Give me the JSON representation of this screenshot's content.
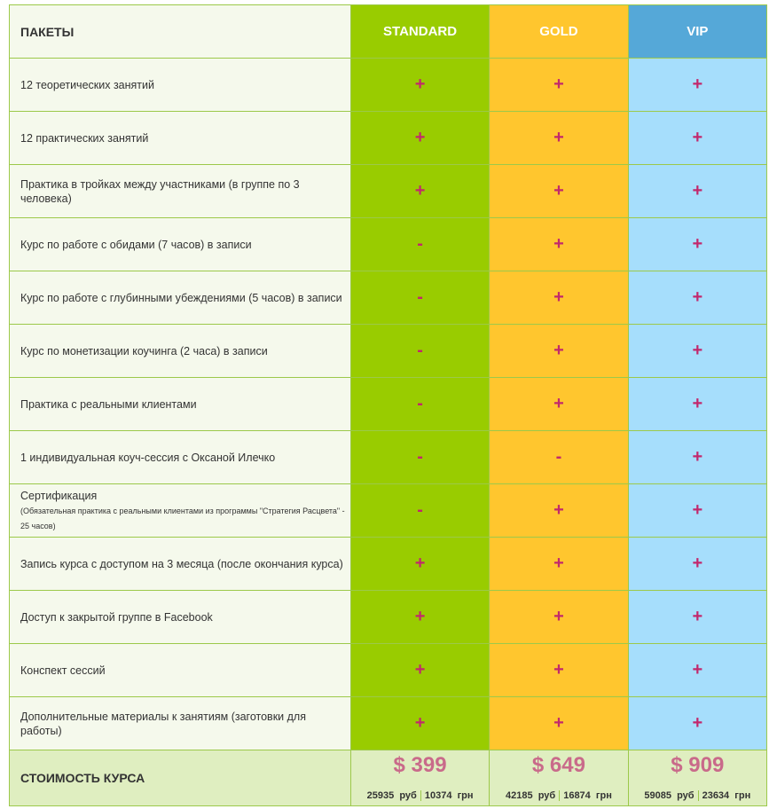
{
  "header": {
    "label": "ПАКЕТЫ",
    "plans": [
      "STANDARD",
      "GOLD",
      "VIP"
    ]
  },
  "rows": [
    {
      "label": "12 теоретических занятий",
      "values": [
        "+",
        "+",
        "+"
      ]
    },
    {
      "label": "12 практических занятий",
      "values": [
        "+",
        "+",
        "+"
      ]
    },
    {
      "label": "Практика в тройках между участниками (в группе по 3 человека)",
      "values": [
        "+",
        "+",
        "+"
      ]
    },
    {
      "label": "Курс по работе с обидами (7 часов) в записи",
      "values": [
        "-",
        "+",
        "+"
      ]
    },
    {
      "label": "Курс по работе с глубинными убеждениями (5 часов) в записи",
      "values": [
        "-",
        "+",
        "+"
      ]
    },
    {
      "label": "Курс по монетизации коучинга (2 часа) в записи",
      "values": [
        "-",
        "+",
        "+"
      ]
    },
    {
      "label": "Практика с реальными клиентами",
      "values": [
        "-",
        "+",
        "+"
      ]
    },
    {
      "label": "1 индивидуальная коуч-сессия с Оксаной Илечко",
      "values": [
        "-",
        "-",
        "+"
      ]
    },
    {
      "label": "Сертификация",
      "note": "(Обязательная практика с реальными клиентами из программы \"Стратегия Расцвета\" - 25 часов)",
      "values": [
        "-",
        "+",
        "+"
      ]
    },
    {
      "label": "Запись курса с доступом на 3 месяца (после окончания курса)",
      "values": [
        "+",
        "+",
        "+"
      ]
    },
    {
      "label": "Доступ к закрытой группе в Facebook",
      "values": [
        "+",
        "+",
        "+"
      ]
    },
    {
      "label": "Конспект сессий",
      "values": [
        "+",
        "+",
        "+"
      ]
    },
    {
      "label": "Дополнительные материалы к занятиям (заготовки для работы)",
      "values": [
        "+",
        "+",
        "+"
      ]
    }
  ],
  "footer": {
    "label": "СТОИМОСТЬ КУРСА",
    "prices": [
      {
        "usd": "$ 399",
        "rub": "25935",
        "rub_unit": "руб",
        "uah": "10374",
        "uah_unit": "грн"
      },
      {
        "usd": "$ 649",
        "rub": "42185",
        "rub_unit": "руб",
        "uah": "16874",
        "uah_unit": "грн"
      },
      {
        "usd": "$ 909",
        "rub": "59085",
        "rub_unit": "руб",
        "uah": "23634",
        "uah_unit": "грн"
      }
    ]
  }
}
